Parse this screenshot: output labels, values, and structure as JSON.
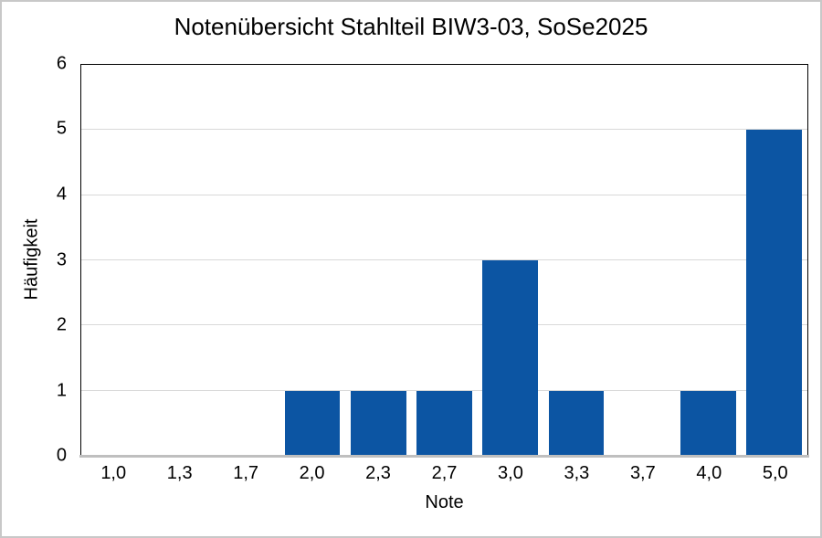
{
  "frame": {
    "background": "#FFFFFF",
    "border_color": "#C8C8C8"
  },
  "chart_data": {
    "type": "bar",
    "title": "Notenübersicht Stahlteil BIW3-03, SoSe2025",
    "xlabel": "Note",
    "ylabel": "Häufigkeit",
    "categories": [
      "1,0",
      "1,3",
      "1,7",
      "2,0",
      "2,3",
      "2,7",
      "3,0",
      "3,3",
      "3,7",
      "4,0",
      "5,0"
    ],
    "values": [
      0,
      0,
      0,
      1,
      1,
      1,
      3,
      1,
      0,
      1,
      5
    ],
    "ylim": [
      0,
      6
    ],
    "yticks": [
      0,
      1,
      2,
      3,
      4,
      5,
      6
    ],
    "grid": "horizontal",
    "legend_position": "none",
    "bar_color": "#0C55A3",
    "gridline_color": "#D9D9D9",
    "axis_line_color": "#BFBFBF",
    "plot_border_color": "#000000",
    "text_color": "#000000"
  }
}
